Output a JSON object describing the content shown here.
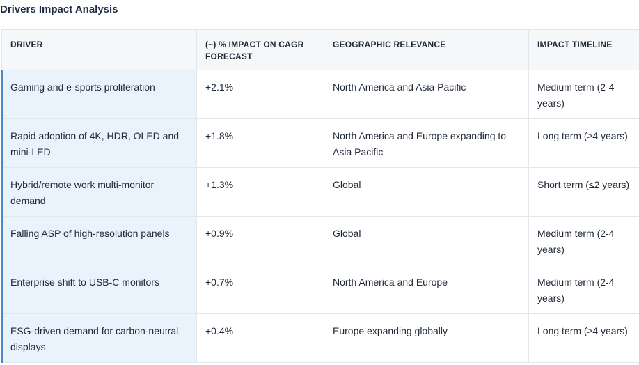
{
  "title": "Drivers Impact Analysis",
  "table": {
    "headers": {
      "driver": "DRIVER",
      "impact": "(~) % IMPACT ON CAGR FORECAST",
      "geo": "GEOGRAPHIC RELEVANCE",
      "timeline": "IMPACT TIMELINE"
    },
    "rows": [
      {
        "driver": "Gaming and e-sports proliferation",
        "impact": "+2.1%",
        "geo": "North America and Asia Pacific",
        "timeline": "Medium term (2-4 years)"
      },
      {
        "driver": "Rapid adoption of 4K, HDR, OLED and mini-LED",
        "impact": "+1.8%",
        "geo": "North America and Europe expanding to Asia Pacific",
        "timeline": "Long term (≥4 years)"
      },
      {
        "driver": "Hybrid/remote work multi-monitor demand",
        "impact": "+1.3%",
        "geo": "Global",
        "timeline": "Short term (≤2 years)"
      },
      {
        "driver": "Falling ASP of high-resolution panels",
        "impact": "+0.9%",
        "geo": "Global",
        "timeline": "Medium term (2-4 years)"
      },
      {
        "driver": "Enterprise shift to USB-C monitors",
        "impact": "+0.7%",
        "geo": "North America and Europe",
        "timeline": "Medium term (2-4 years)"
      },
      {
        "driver": "ESG-driven demand for carbon-neutral displays",
        "impact": "+0.4%",
        "geo": "Europe expanding globally",
        "timeline": "Long term (≥4 years)"
      }
    ]
  }
}
